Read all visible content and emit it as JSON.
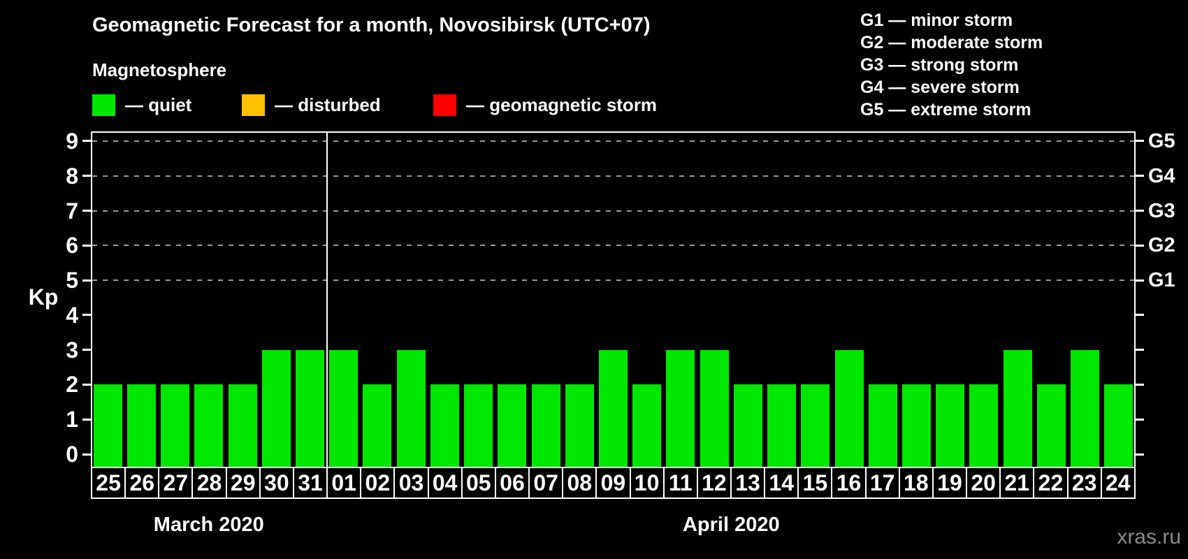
{
  "title": "Geomagnetic Forecast for a month, Novosibirsk (UTC+07)",
  "subtitle": "Magnetosphere",
  "legend": {
    "items": [
      {
        "name": "quiet",
        "label": "— quiet",
        "color": "#00e800"
      },
      {
        "name": "disturbed",
        "label": "— disturbed",
        "color": "#ffc000"
      },
      {
        "name": "geomagnetic-storm",
        "label": "— geomagnetic storm",
        "color": "#ff0000"
      }
    ]
  },
  "storm_scale_legend": {
    "items": [
      {
        "code": "G1",
        "label": "G1 — minor storm"
      },
      {
        "code": "G2",
        "label": "G2 — moderate storm"
      },
      {
        "code": "G3",
        "label": "G3 — strong storm"
      },
      {
        "code": "G4",
        "label": "G4 — severe storm"
      },
      {
        "code": "G5",
        "label": "G5 — extreme storm"
      }
    ]
  },
  "watermark": "xras.ru",
  "chart_data": {
    "type": "bar",
    "ylabel": "Kp",
    "ylim": [
      0,
      9
    ],
    "y_ticks": [
      0,
      1,
      2,
      3,
      4,
      5,
      6,
      7,
      8,
      9
    ],
    "gridlines_at": [
      5,
      6,
      7,
      8,
      9
    ],
    "grid": "dashed-horizontal-at-storm-levels-only",
    "legend_position": "top",
    "bar_color": "#00e800",
    "right_axis_labels": [
      {
        "value": 5,
        "label": "G1"
      },
      {
        "value": 6,
        "label": "G2"
      },
      {
        "value": 7,
        "label": "G3"
      },
      {
        "value": 8,
        "label": "G4"
      },
      {
        "value": 9,
        "label": "G5"
      }
    ],
    "months": [
      {
        "label": "March 2020",
        "days": [
          "25",
          "26",
          "27",
          "28",
          "29",
          "30",
          "31"
        ],
        "values": [
          2,
          2,
          2,
          2,
          2,
          3,
          3
        ]
      },
      {
        "label": "April 2020",
        "days": [
          "01",
          "02",
          "03",
          "04",
          "05",
          "06",
          "07",
          "08",
          "09",
          "10",
          "11",
          "12",
          "13",
          "14",
          "15",
          "16",
          "17",
          "18",
          "19",
          "20",
          "21",
          "22",
          "23",
          "24"
        ],
        "values": [
          3,
          2,
          3,
          2,
          2,
          2,
          2,
          2,
          3,
          2,
          3,
          3,
          2,
          2,
          2,
          3,
          2,
          2,
          2,
          2,
          3,
          2,
          3,
          2
        ]
      }
    ]
  }
}
